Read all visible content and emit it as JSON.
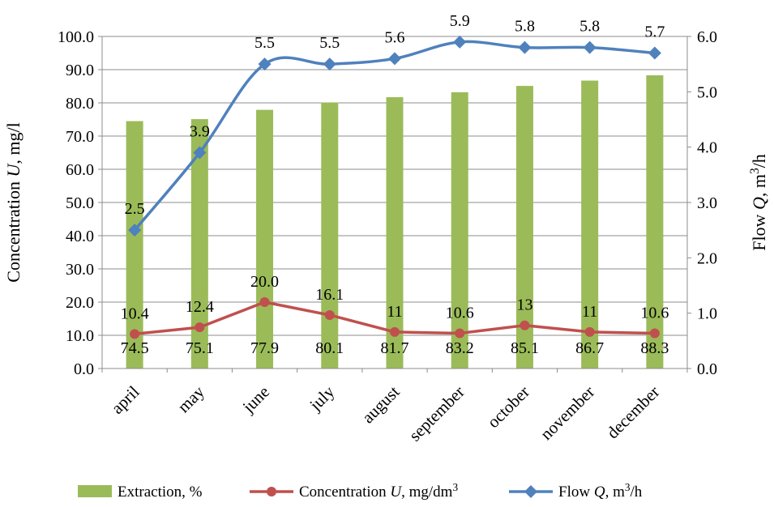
{
  "chart_data": {
    "type": "bar+line",
    "categories": [
      "april",
      "may",
      "june",
      "july",
      "august",
      "september",
      "october",
      "november",
      "december"
    ],
    "series": [
      {
        "name": "Extraction, %",
        "type": "bar",
        "axis": "left",
        "color": "#9BBB59",
        "values": [
          74.5,
          75.1,
          77.9,
          80.1,
          81.7,
          83.2,
          85.1,
          86.7,
          88.3
        ],
        "labels": [
          "74.5",
          "75.1",
          "77.9",
          "80.1",
          "81.7",
          "83.2",
          "85.1",
          "86.7",
          "88.3"
        ]
      },
      {
        "name": "Concentration U, mg/dm3",
        "type": "line",
        "axis": "left",
        "color": "#C0504D",
        "marker": "circle",
        "values": [
          10.4,
          12.4,
          20.0,
          16.1,
          11,
          10.6,
          13,
          11,
          10.6
        ],
        "labels": [
          "10.4",
          "12.4",
          "20.0",
          "16.1",
          "11",
          "10.6",
          "13",
          "11",
          "10.6"
        ]
      },
      {
        "name": "Flow Q, m3/h",
        "type": "line",
        "axis": "right",
        "color": "#4F81BD",
        "marker": "diamond",
        "smooth": true,
        "values": [
          2.5,
          3.9,
          5.5,
          5.5,
          5.6,
          5.9,
          5.8,
          5.8,
          5.7
        ],
        "labels": [
          "2.5",
          "3.9",
          "5.5",
          "5.5",
          "5.6",
          "5.9",
          "5.8",
          "5.8",
          "5.7"
        ]
      }
    ],
    "y_left": {
      "label_parts": [
        "Concentration ",
        "U",
        ", mg/l"
      ],
      "min": 0,
      "max": 100,
      "step": 10,
      "ticks": [
        "0.0",
        "10.0",
        "20.0",
        "30.0",
        "40.0",
        "50.0",
        "60.0",
        "70.0",
        "80.0",
        "90.0",
        "100.0"
      ]
    },
    "y_right": {
      "label_parts": [
        "Flow ",
        "Q",
        ", m",
        "3",
        "/h"
      ],
      "min": 0,
      "max": 6,
      "step": 1,
      "ticks": [
        "0.0",
        "1.0",
        "2.0",
        "3.0",
        "4.0",
        "5.0",
        "6.0"
      ]
    },
    "grid": true,
    "legend": {
      "position": "bottom",
      "items": [
        {
          "parts": [
            "Extraction, %"
          ]
        },
        {
          "parts": [
            "Concentration ",
            "U",
            ", mg/dm",
            "3"
          ]
        },
        {
          "parts": [
            "Flow ",
            "Q",
            ", m",
            "3",
            "/h"
          ]
        }
      ]
    }
  }
}
